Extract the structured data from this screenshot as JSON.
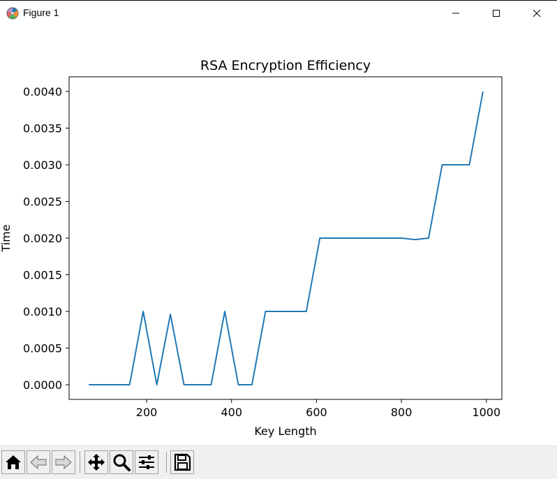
{
  "window": {
    "title": "Figure 1",
    "icon": "matplotlib-logo-icon",
    "controls": [
      "minimize-icon",
      "maximize-icon",
      "close-icon"
    ]
  },
  "toolbar": {
    "buttons": [
      {
        "name": "home",
        "icon": "home-icon"
      },
      {
        "name": "back",
        "icon": "back-arrow-icon"
      },
      {
        "name": "forward",
        "icon": "forward-arrow-icon"
      },
      {
        "name": "pan",
        "icon": "move-icon"
      },
      {
        "name": "zoom",
        "icon": "zoom-icon"
      },
      {
        "name": "configure-subplots",
        "icon": "sliders-icon"
      },
      {
        "name": "save",
        "icon": "save-icon"
      }
    ]
  },
  "chart_data": {
    "type": "line",
    "title": "RSA Encryption Efficiency",
    "xlabel": "Key Length",
    "ylabel": "Time",
    "xlim": [
      17.5,
      1036.5
    ],
    "ylim": [
      -0.0002,
      0.0042
    ],
    "xticks": [
      200,
      400,
      600,
      800,
      1000
    ],
    "xtick_labels": [
      "200",
      "400",
      "600",
      "800",
      "1000"
    ],
    "yticks": [
      0.0,
      0.0005,
      0.001,
      0.0015,
      0.002,
      0.0025,
      0.003,
      0.0035,
      0.004
    ],
    "ytick_labels": [
      "0.0000",
      "0.0005",
      "0.0010",
      "0.0015",
      "0.0020",
      "0.0025",
      "0.0030",
      "0.0035",
      "0.0040"
    ],
    "grid": false,
    "color": "#1f77b4",
    "series": [
      {
        "x": [
          64,
          96,
          128,
          160,
          192,
          224,
          256,
          288,
          320,
          352,
          384,
          416,
          448,
          480,
          512,
          544,
          576,
          608,
          640,
          672,
          704,
          736,
          768,
          800,
          832,
          864,
          896,
          928,
          960,
          992
        ],
        "y": [
          0.0,
          0.0,
          0.0,
          0.0,
          0.001,
          0.0,
          0.00096,
          0.0,
          0.0,
          0.0,
          0.001,
          0.0,
          0.0,
          0.001,
          0.001,
          0.001,
          0.001,
          0.002,
          0.002,
          0.002,
          0.002,
          0.002,
          0.002,
          0.002,
          0.00198,
          0.002,
          0.003,
          0.003,
          0.003,
          0.004
        ]
      }
    ]
  }
}
